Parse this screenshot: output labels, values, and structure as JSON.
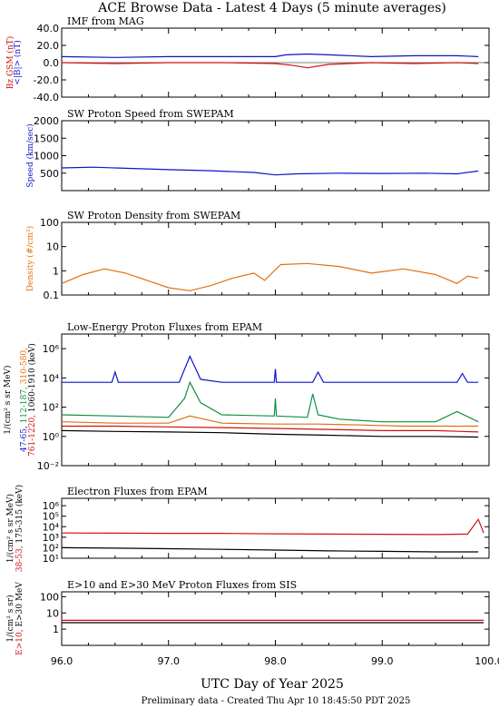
{
  "title": "ACE Browse Data - Latest 4 Days (5 minute averages)",
  "footer": "Preliminary data - Created Thu Apr 10 18:45:50 PDT 2025",
  "chart_data": [
    {
      "type": "line",
      "title": "IMF from MAG",
      "yscale": "linear",
      "ylim": [
        -40,
        40
      ],
      "yticks": [
        "40.0",
        "20.0",
        "0.0",
        "-20.0",
        "-40.0"
      ],
      "ylabel_parts": [
        {
          "text": "<|B|> (nT)",
          "color": "#1010c8"
        },
        {
          "text": "Bz GSM (nT)",
          "color": "#d01010"
        }
      ],
      "series": [
        {
          "key": "btot",
          "color": "#1010c8",
          "x": [
            96.0,
            96.5,
            97.0,
            97.5,
            98.0,
            98.1,
            98.3,
            98.5,
            98.9,
            99.3,
            99.7,
            99.9
          ],
          "y": [
            7,
            6,
            7,
            7,
            7,
            9,
            10,
            9,
            7,
            8,
            8,
            7
          ]
        },
        {
          "key": "bz",
          "color": "#d01010",
          "x": [
            96.0,
            96.5,
            97.0,
            97.5,
            98.0,
            98.15,
            98.3,
            98.5,
            98.9,
            99.3,
            99.7,
            99.9
          ],
          "y": [
            0,
            -1,
            0,
            0,
            -1,
            -3,
            -6,
            -2,
            0,
            -1,
            0,
            -1
          ]
        }
      ]
    },
    {
      "type": "line",
      "title": "SW Proton Speed from SWEPAM",
      "yscale": "linear",
      "ylim": [
        0,
        2000
      ],
      "yticks": [
        "2000",
        "1500",
        "1000",
        "500"
      ],
      "ylabel_parts": [
        {
          "text": "Speed (km/sec)",
          "color": "#1010c8"
        }
      ],
      "series": [
        {
          "key": "speed",
          "color": "#1010c8",
          "x": [
            96.0,
            96.3,
            96.6,
            97.0,
            97.4,
            97.8,
            98.0,
            98.2,
            98.6,
            99.0,
            99.4,
            99.7,
            99.9
          ],
          "y": [
            650,
            670,
            640,
            600,
            570,
            520,
            450,
            480,
            500,
            490,
            500,
            480,
            560
          ]
        }
      ]
    },
    {
      "type": "line",
      "title": "SW Proton Density from SWEPAM",
      "yscale": "log",
      "ylim": [
        0.1,
        100
      ],
      "yticks": [
        "100",
        "10",
        "1",
        "0.1"
      ],
      "ylabel_parts": [
        {
          "text": "Density (#/cm³)",
          "color": "#e07010"
        }
      ],
      "series": [
        {
          "key": "density",
          "color": "#e07010",
          "x": [
            96.0,
            96.2,
            96.4,
            96.6,
            96.8,
            97.0,
            97.2,
            97.4,
            97.6,
            97.8,
            97.9,
            98.05,
            98.3,
            98.6,
            98.9,
            99.2,
            99.5,
            99.7,
            99.8,
            99.9
          ],
          "y": [
            0.3,
            0.7,
            1.2,
            0.8,
            0.4,
            0.2,
            0.15,
            0.25,
            0.5,
            0.8,
            0.4,
            1.8,
            2.0,
            1.5,
            0.8,
            1.2,
            0.7,
            0.3,
            0.6,
            0.5
          ]
        }
      ]
    },
    {
      "type": "line",
      "title": "Low-Energy Proton Fluxes from EPAM",
      "yscale": "log",
      "ylim": [
        0.01,
        10000000
      ],
      "yticks": [
        "10⁶",
        "10⁴",
        "10²",
        "10⁰",
        "10⁻²"
      ],
      "ylabel_parts": [
        {
          "text": "47-65,",
          "color": "#1010c8"
        },
        {
          "text": "112-187,",
          "color": "#109040"
        },
        {
          "text": "310-580,",
          "color": "#e07010"
        },
        {
          "text": "761-1220,",
          "color": "#d01010"
        },
        {
          "text": "1060-1910 (keV)",
          "color": "#000000"
        },
        {
          "text": "1/(cm² s sr MeV)",
          "color": "#000000"
        }
      ],
      "series": [
        {
          "key": "p47",
          "color": "#1010c8",
          "x": [
            96.0,
            96.47,
            96.5,
            96.53,
            97.1,
            97.2,
            97.3,
            97.5,
            97.99,
            98.0,
            98.01,
            98.35,
            98.4,
            98.45,
            99.0,
            99.7,
            99.75,
            99.8,
            99.9
          ],
          "y": [
            5000,
            5000,
            25000,
            5000,
            5000,
            300000,
            8000,
            5000,
            5000,
            40000,
            5000,
            5000,
            25000,
            5000,
            5000,
            5000,
            20000,
            5000,
            5000
          ]
        },
        {
          "key": "p112",
          "color": "#109040",
          "x": [
            96.0,
            96.5,
            97.0,
            97.15,
            97.2,
            97.3,
            97.5,
            97.99,
            98.0,
            98.01,
            98.3,
            98.35,
            98.4,
            98.6,
            99.0,
            99.5,
            99.7,
            99.9
          ],
          "y": [
            30,
            25,
            20,
            400,
            5000,
            200,
            30,
            25,
            400,
            25,
            20,
            800,
            30,
            15,
            10,
            10,
            50,
            10
          ]
        },
        {
          "key": "p310",
          "color": "#e07010",
          "x": [
            96.0,
            96.5,
            97.0,
            97.2,
            97.5,
            98.0,
            98.4,
            98.8,
            99.2,
            99.6,
            99.9
          ],
          "y": [
            10,
            8,
            8,
            25,
            8,
            7,
            7,
            6,
            5,
            5,
            5
          ]
        },
        {
          "key": "p761",
          "color": "#d01010",
          "x": [
            96.0,
            96.5,
            97.0,
            97.5,
            98.0,
            98.5,
            99.0,
            99.5,
            99.9
          ],
          "y": [
            5,
            5,
            4.5,
            4,
            3.5,
            3,
            2.5,
            2.5,
            2
          ]
        },
        {
          "key": "p1060",
          "color": "#000000",
          "x": [
            96.0,
            96.5,
            97.0,
            97.5,
            98.0,
            98.5,
            99.0,
            99.5,
            99.9
          ],
          "y": [
            2.5,
            2.2,
            2,
            1.8,
            1.4,
            1.2,
            1,
            1,
            0.9
          ]
        }
      ]
    },
    {
      "type": "line",
      "title": "Electron Fluxes from EPAM",
      "yscale": "log",
      "ylim": [
        10,
        5000000
      ],
      "yticks": [
        "10⁶",
        "10⁵",
        "10⁴",
        "10³",
        "10²",
        "10¹"
      ],
      "ylabel_parts": [
        {
          "text": "38-53,",
          "color": "#d01010"
        },
        {
          "text": "175-315 (keV)",
          "color": "#000000"
        },
        {
          "text": "1/(cm² s sr MeV)",
          "color": "#000000"
        }
      ],
      "series": [
        {
          "key": "e38",
          "color": "#d01010",
          "x": [
            96.0,
            96.5,
            97.0,
            97.5,
            98.0,
            98.5,
            99.0,
            99.5,
            99.8,
            99.9,
            99.95
          ],
          "y": [
            2500,
            2400,
            2300,
            2300,
            2100,
            2000,
            1900,
            1800,
            2000,
            50000,
            2500
          ]
        },
        {
          "key": "e175",
          "color": "#000000",
          "x": [
            96.0,
            96.5,
            97.0,
            97.5,
            98.0,
            98.5,
            99.0,
            99.5,
            99.9
          ],
          "y": [
            100,
            90,
            80,
            70,
            60,
            50,
            45,
            40,
            40
          ]
        }
      ]
    },
    {
      "type": "line",
      "title": "E>10 and E>30 MeV Proton Fluxes from SIS",
      "yscale": "log",
      "ylim": [
        0.1,
        200
      ],
      "yticks": [
        "100",
        "10",
        "1"
      ],
      "ylabel_parts": [
        {
          "text": "E>10,",
          "color": "#d01010"
        },
        {
          "text": "E>30 MeV",
          "color": "#000000"
        },
        {
          "text": "1/(cm² s sr)",
          "color": "#000000"
        }
      ],
      "series": [
        {
          "key": "p10",
          "color": "#d01010",
          "x": [
            96.0,
            97.0,
            98.0,
            99.0,
            99.95
          ],
          "y": [
            3.5,
            3.5,
            3.5,
            3.5,
            3.5
          ]
        },
        {
          "key": "p30",
          "color": "#000000",
          "x": [
            96.0,
            97.0,
            98.0,
            99.0,
            99.95
          ],
          "y": [
            2.5,
            2.5,
            2.5,
            2.5,
            2.5
          ]
        }
      ]
    }
  ],
  "xaxis": {
    "label": "UTC Day of Year 2025",
    "range": [
      96.0,
      100.0
    ],
    "ticks": [
      "96.0",
      "97.0",
      "98.0",
      "99.0",
      "100.0"
    ]
  }
}
